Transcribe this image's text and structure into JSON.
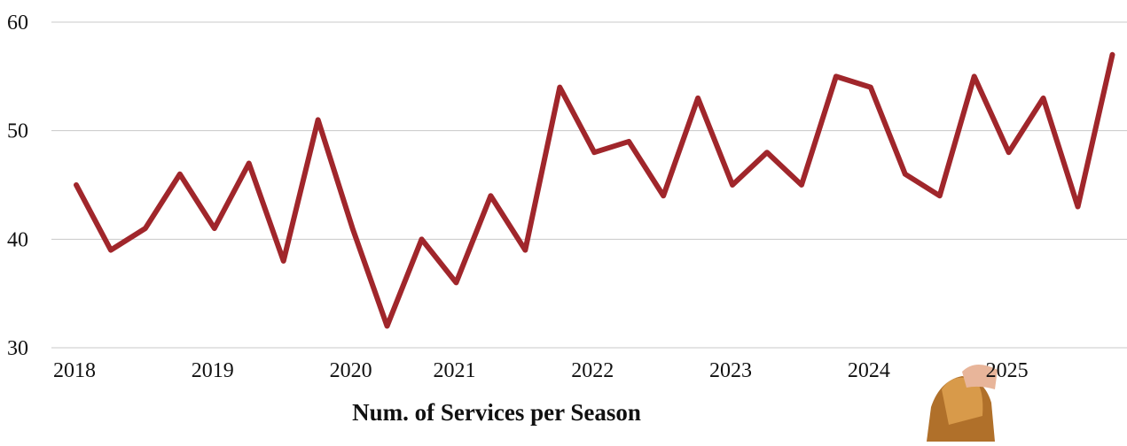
{
  "chart_data": {
    "type": "line",
    "title": "Num. of Services per Season",
    "categories": [
      "2018",
      null,
      null,
      null,
      "2019",
      null,
      null,
      null,
      "2020",
      null,
      null,
      "2021",
      null,
      null,
      null,
      "2022",
      null,
      null,
      null,
      "2023",
      null,
      null,
      null,
      "2024",
      null,
      null,
      null,
      "2025",
      null,
      null,
      null
    ],
    "series": [
      {
        "name": "Services",
        "color": "#a0262b",
        "values": [
          45,
          39,
          41,
          46,
          41,
          47,
          38,
          51,
          41,
          32,
          40,
          36,
          44,
          39,
          54,
          48,
          49,
          44,
          53,
          45,
          48,
          45,
          55,
          54,
          46,
          44,
          55,
          48,
          53,
          43,
          57
        ]
      }
    ],
    "ylim": [
      30,
      60
    ],
    "yticks": [
      30,
      40,
      50,
      60
    ],
    "grid": true
  }
}
